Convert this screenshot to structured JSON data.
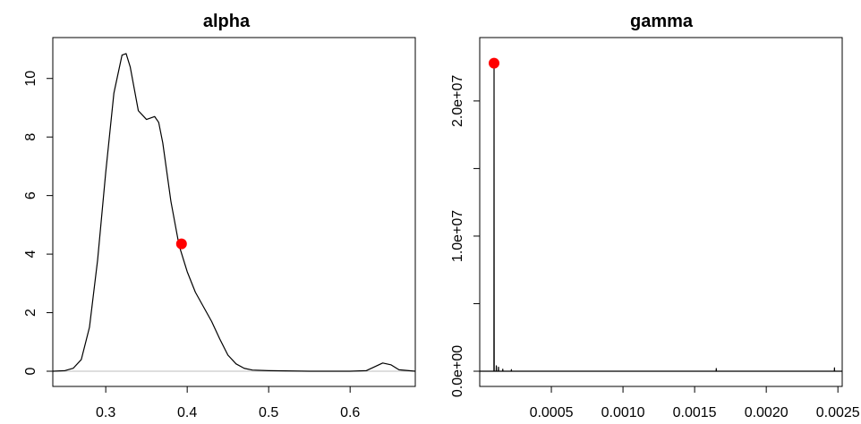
{
  "chart_data": [
    {
      "type": "line",
      "title": "alpha",
      "xlabel": "",
      "ylabel": "",
      "xlim": [
        0.235,
        0.68
      ],
      "ylim": [
        0,
        11
      ],
      "xticks": [
        0.3,
        0.4,
        0.5,
        0.6
      ],
      "xtick_labels": [
        "0.3",
        "0.4",
        "0.5",
        "0.6"
      ],
      "yticks": [
        0,
        2,
        4,
        6,
        8,
        10
      ],
      "ytick_labels": [
        "0",
        "2",
        "4",
        "6",
        "8",
        "10"
      ],
      "grid": false,
      "zero_line": true,
      "line_color": "#000000",
      "zero_line_color": "#bebebe",
      "series": [
        {
          "x": [
            0.235,
            0.25,
            0.26,
            0.27,
            0.28,
            0.29,
            0.3,
            0.31,
            0.32,
            0.325,
            0.33,
            0.34,
            0.35,
            0.36,
            0.365,
            0.37,
            0.38,
            0.39,
            0.4,
            0.41,
            0.42,
            0.43,
            0.44,
            0.45,
            0.46,
            0.47,
            0.48,
            0.5,
            0.55,
            0.6,
            0.62,
            0.63,
            0.64,
            0.65,
            0.66,
            0.68
          ],
          "y": [
            0,
            0.02,
            0.1,
            0.4,
            1.5,
            3.8,
            6.8,
            9.5,
            10.8,
            10.85,
            10.4,
            8.9,
            8.6,
            8.7,
            8.5,
            7.8,
            5.8,
            4.3,
            3.4,
            2.7,
            2.2,
            1.7,
            1.1,
            0.55,
            0.25,
            0.1,
            0.04,
            0.02,
            0,
            0,
            0.02,
            0.15,
            0.28,
            0.22,
            0.05,
            0
          ]
        }
      ],
      "marker": {
        "x": 0.393,
        "y": 4.35,
        "color": "#ff0000"
      }
    },
    {
      "type": "line",
      "title": "gamma",
      "xlabel": "",
      "ylabel": "",
      "xlim": [
        0.0,
        0.00253
      ],
      "ylim": [
        0,
        23500000
      ],
      "xticks": [
        0.0005,
        0.001,
        0.0015,
        0.002,
        0.0025
      ],
      "xtick_labels": [
        "0.0005",
        "0.0010",
        "0.0015",
        "0.0020",
        "0.0025"
      ],
      "yticks": [
        0,
        5000000,
        10000000,
        15000000,
        20000000
      ],
      "ytick_labels": [
        "0.0e+00",
        "",
        "1.0e+07",
        "",
        "2.0e+07"
      ],
      "grid": false,
      "zero_line": true,
      "line_color": "#000000",
      "zero_line_color": "#bebebe",
      "series": [
        {
          "x": [
            0.0,
            9.9e-05,
            0.0001,
            0.000101,
            0.000115,
            0.000116,
            0.000117,
            0.00013,
            0.000131,
            0.000132,
            0.00016,
            0.000161,
            0.000162,
            0.00022,
            0.000221,
            0.000222,
            0.00165,
            0.001651,
            0.001652,
            0.002475,
            0.002476,
            0.002477,
            0.00253
          ],
          "y": [
            0,
            0,
            22800000,
            0,
            0,
            400000,
            0,
            0,
            300000,
            0,
            0,
            150000,
            0,
            0,
            120000,
            0,
            0,
            200000,
            0,
            0,
            250000,
            0,
            0
          ]
        }
      ],
      "marker": {
        "x": 0.0001,
        "y": 22800000,
        "color": "#ff0000"
      }
    }
  ]
}
